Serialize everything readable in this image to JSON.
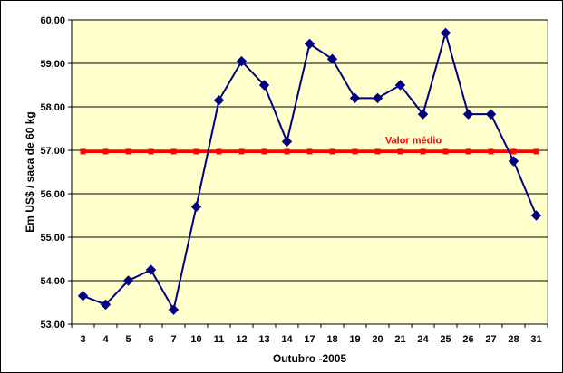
{
  "chart_data": {
    "type": "line",
    "xlabel": "Outubro -2005",
    "ylabel": "Em US$ / saca de 60 kg",
    "categories": [
      "3",
      "4",
      "5",
      "6",
      "7",
      "10",
      "11",
      "12",
      "13",
      "14",
      "17",
      "18",
      "19",
      "20",
      "21",
      "24",
      "25",
      "26",
      "27",
      "28",
      "31"
    ],
    "ylim": [
      53,
      60
    ],
    "ytick_labels": [
      "53,00",
      "54,00",
      "55,00",
      "56,00",
      "57,00",
      "58,00",
      "59,00",
      "60,00"
    ],
    "grid": "horizontal",
    "series": [
      {
        "values": [
          53.65,
          53.45,
          54.0,
          54.25,
          53.33,
          55.7,
          58.15,
          59.05,
          58.5,
          57.2,
          59.45,
          59.1,
          58.2,
          58.2,
          58.5,
          57.83,
          59.7,
          57.83,
          57.83,
          56.75,
          55.5
        ],
        "color": "#000080",
        "marker": "diamond"
      },
      {
        "name": "Valor médio",
        "values": [
          56.97,
          56.97,
          56.97,
          56.97,
          56.97,
          56.97,
          56.97,
          56.97,
          56.97,
          56.97,
          56.97,
          56.97,
          56.97,
          56.97,
          56.97,
          56.97,
          56.97,
          56.97,
          56.97,
          56.97,
          56.97
        ],
        "color": "#ff0000",
        "marker": "square"
      }
    ],
    "plot_background": "#ffffcc"
  }
}
